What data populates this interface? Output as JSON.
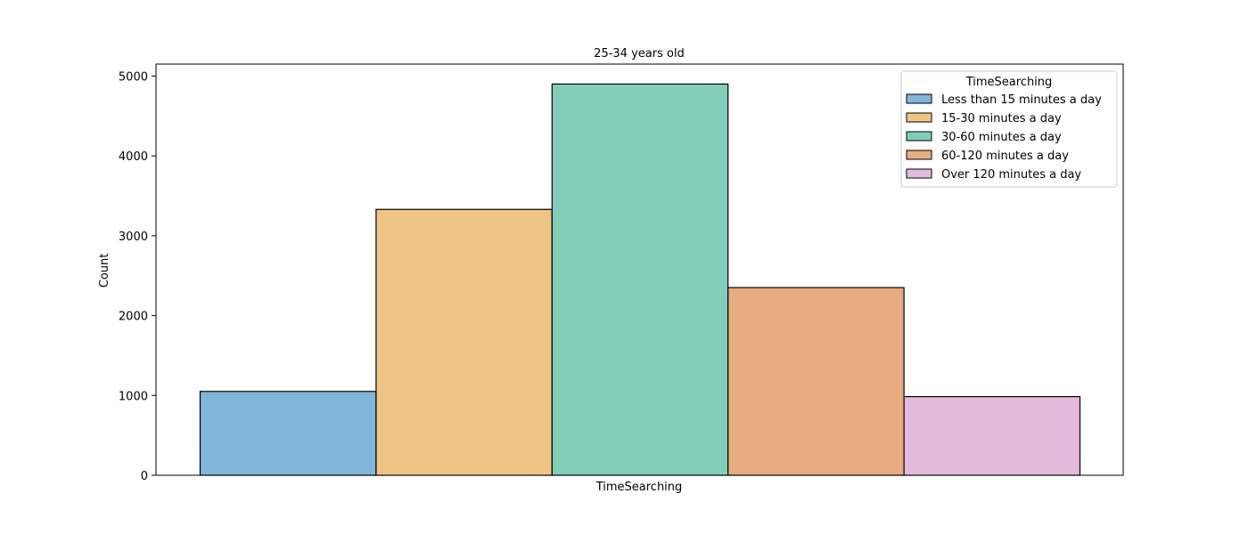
{
  "chart_data": {
    "type": "bar",
    "title": "25-34 years old",
    "xlabel": "TimeSearching",
    "ylabel": "Count",
    "ylim": [
      0,
      5150
    ],
    "yticks": [
      0,
      1000,
      2000,
      3000,
      4000,
      5000
    ],
    "grid": false,
    "legend": {
      "title": "TimeSearching",
      "placement": "top-right"
    },
    "series": [
      {
        "name": "Less than 15 minutes a day",
        "value": 1050,
        "color": "#7fb6d9"
      },
      {
        "name": "15-30 minutes a day",
        "value": 3330,
        "color": "#eec584"
      },
      {
        "name": "30-60 minutes a day",
        "value": 4900,
        "color": "#82ceb8"
      },
      {
        "name": "60-120 minutes a day",
        "value": 2350,
        "color": "#e7ad80"
      },
      {
        "name": "Over 120 minutes a day",
        "value": 985,
        "color": "#e3badc"
      }
    ]
  }
}
